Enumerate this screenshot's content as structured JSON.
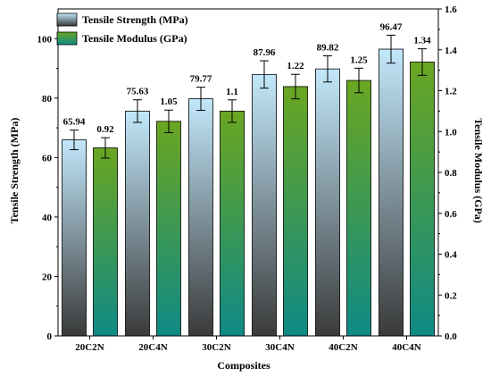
{
  "chart_data": {
    "type": "bar",
    "categories": [
      "20C2N",
      "20C4N",
      "30C2N",
      "30C4N",
      "40C2N",
      "40C4N"
    ],
    "xlabel": "Composites",
    "series": [
      {
        "name": "Tensile Strength (MPa)",
        "axis": "left",
        "values": [
          65.94,
          75.63,
          79.77,
          87.96,
          89.82,
          96.47
        ],
        "errors": [
          3.3,
          3.8,
          3.9,
          4.6,
          4.4,
          4.7
        ],
        "labels": [
          "65.94",
          "75.63",
          "79.77",
          "87.96",
          "89.82",
          "96.47"
        ]
      },
      {
        "name": "Tensile Modulus (GPa)",
        "axis": "right",
        "values": [
          0.92,
          1.05,
          1.1,
          1.22,
          1.25,
          1.34
        ],
        "errors": [
          0.05,
          0.055,
          0.055,
          0.06,
          0.06,
          0.065
        ],
        "labels": [
          "0.92",
          "1.05",
          "1.1",
          "1.22",
          "1.25",
          "1.34"
        ]
      }
    ],
    "y_left": {
      "label": "Tensile Strength (MPa)",
      "range": [
        0,
        110
      ],
      "ticks": [
        0,
        20,
        40,
        60,
        80,
        100
      ]
    },
    "y_right": {
      "label": "Tensile Modulus (GPa)",
      "range": [
        0,
        1.6
      ],
      "ticks": [
        "0.0",
        "0.2",
        "0.4",
        "0.6",
        "0.8",
        "1.0",
        "1.2",
        "1.4",
        "1.6"
      ]
    },
    "grid": false,
    "legend": "top-left",
    "colors": {
      "strength_top": "#c2e8fb",
      "strength_bottom": "#3a3a3a",
      "modulus_top": "#6aa621",
      "modulus_bottom": "#0f8a86"
    }
  }
}
